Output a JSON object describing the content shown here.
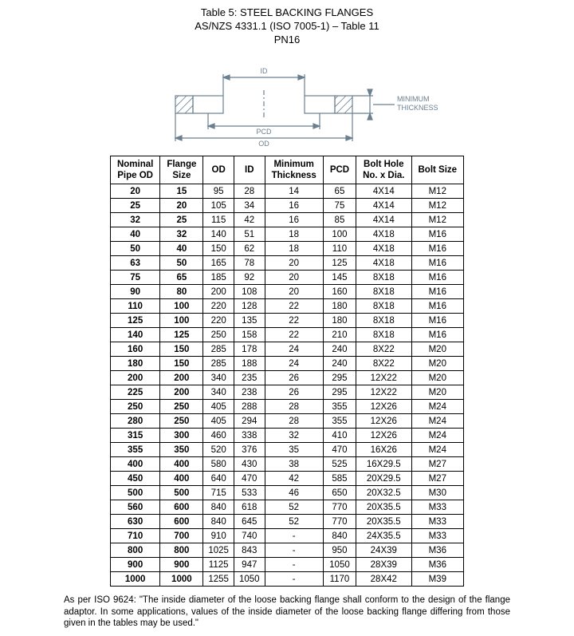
{
  "title": {
    "line1": "Table 5:  STEEL BACKING FLANGES",
    "line2": "AS/NZS 4331.1 (ISO 7005-1) – Table 11",
    "line3": "PN16"
  },
  "diagram": {
    "labels": {
      "id": "ID",
      "pcd": "PCD",
      "od": "OD",
      "thickness": "MINIMUM\nTHICKNESS"
    },
    "line_color": "#6b7f8f",
    "hatch_color": "#6b7f8f",
    "text_color": "#6b7f8f"
  },
  "table": {
    "columns": [
      {
        "key": "nominal",
        "label": "Nominal\nPipe OD",
        "bold": true
      },
      {
        "key": "flange",
        "label": "Flange\nSize",
        "bold": true
      },
      {
        "key": "od",
        "label": "OD",
        "bold": false
      },
      {
        "key": "id",
        "label": "ID",
        "bold": false
      },
      {
        "key": "thick",
        "label": "Minimum\nThickness",
        "bold": false
      },
      {
        "key": "pcd",
        "label": "PCD",
        "bold": false
      },
      {
        "key": "bolt",
        "label": "Bolt Hole\nNo. x Dia.",
        "bold": false
      },
      {
        "key": "size",
        "label": "Bolt Size",
        "bold": false
      }
    ],
    "rows": [
      [
        "20",
        "15",
        "95",
        "28",
        "14",
        "65",
        "4X14",
        "M12"
      ],
      [
        "25",
        "20",
        "105",
        "34",
        "16",
        "75",
        "4X14",
        "M12"
      ],
      [
        "32",
        "25",
        "115",
        "42",
        "16",
        "85",
        "4X14",
        "M12"
      ],
      [
        "40",
        "32",
        "140",
        "51",
        "18",
        "100",
        "4X18",
        "M16"
      ],
      [
        "50",
        "40",
        "150",
        "62",
        "18",
        "110",
        "4X18",
        "M16"
      ],
      [
        "63",
        "50",
        "165",
        "78",
        "20",
        "125",
        "4X18",
        "M16"
      ],
      [
        "75",
        "65",
        "185",
        "92",
        "20",
        "145",
        "8X18",
        "M16"
      ],
      [
        "90",
        "80",
        "200",
        "108",
        "20",
        "160",
        "8X18",
        "M16"
      ],
      [
        "110",
        "100",
        "220",
        "128",
        "22",
        "180",
        "8X18",
        "M16"
      ],
      [
        "125",
        "100",
        "220",
        "135",
        "22",
        "180",
        "8X18",
        "M16"
      ],
      [
        "140",
        "125",
        "250",
        "158",
        "22",
        "210",
        "8X18",
        "M16"
      ],
      [
        "160",
        "150",
        "285",
        "178",
        "24",
        "240",
        "8X22",
        "M20"
      ],
      [
        "180",
        "150",
        "285",
        "188",
        "24",
        "240",
        "8X22",
        "M20"
      ],
      [
        "200",
        "200",
        "340",
        "235",
        "26",
        "295",
        "12X22",
        "M20"
      ],
      [
        "225",
        "200",
        "340",
        "238",
        "26",
        "295",
        "12X22",
        "M20"
      ],
      [
        "250",
        "250",
        "405",
        "288",
        "28",
        "355",
        "12X26",
        "M24"
      ],
      [
        "280",
        "250",
        "405",
        "294",
        "28",
        "355",
        "12X26",
        "M24"
      ],
      [
        "315",
        "300",
        "460",
        "338",
        "32",
        "410",
        "12X26",
        "M24"
      ],
      [
        "355",
        "350",
        "520",
        "376",
        "35",
        "470",
        "16X26",
        "M24"
      ],
      [
        "400",
        "400",
        "580",
        "430",
        "38",
        "525",
        "16X29.5",
        "M27"
      ],
      [
        "450",
        "400",
        "640",
        "470",
        "42",
        "585",
        "20X29.5",
        "M27"
      ],
      [
        "500",
        "500",
        "715",
        "533",
        "46",
        "650",
        "20X32.5",
        "M30"
      ],
      [
        "560",
        "600",
        "840",
        "618",
        "52",
        "770",
        "20X35.5",
        "M33"
      ],
      [
        "630",
        "600",
        "840",
        "645",
        "52",
        "770",
        "20X35.5",
        "M33"
      ],
      [
        "710",
        "700",
        "910",
        "740",
        "-",
        "840",
        "24X35.5",
        "M33"
      ],
      [
        "800",
        "800",
        "1025",
        "843",
        "-",
        "950",
        "24X39",
        "M36"
      ],
      [
        "900",
        "900",
        "1125",
        "947",
        "-",
        "1050",
        "28X39",
        "M36"
      ],
      [
        "1000",
        "1000",
        "1255",
        "1050",
        "-",
        "1170",
        "28X42",
        "M39"
      ]
    ]
  },
  "footnote": "As per ISO 9624: \"The inside diameter of the loose backing flange shall conform to the design of the flange adaptor. In some applications, values of the inside diameter of the loose backing flange differing from those given in the tables may be used.\""
}
